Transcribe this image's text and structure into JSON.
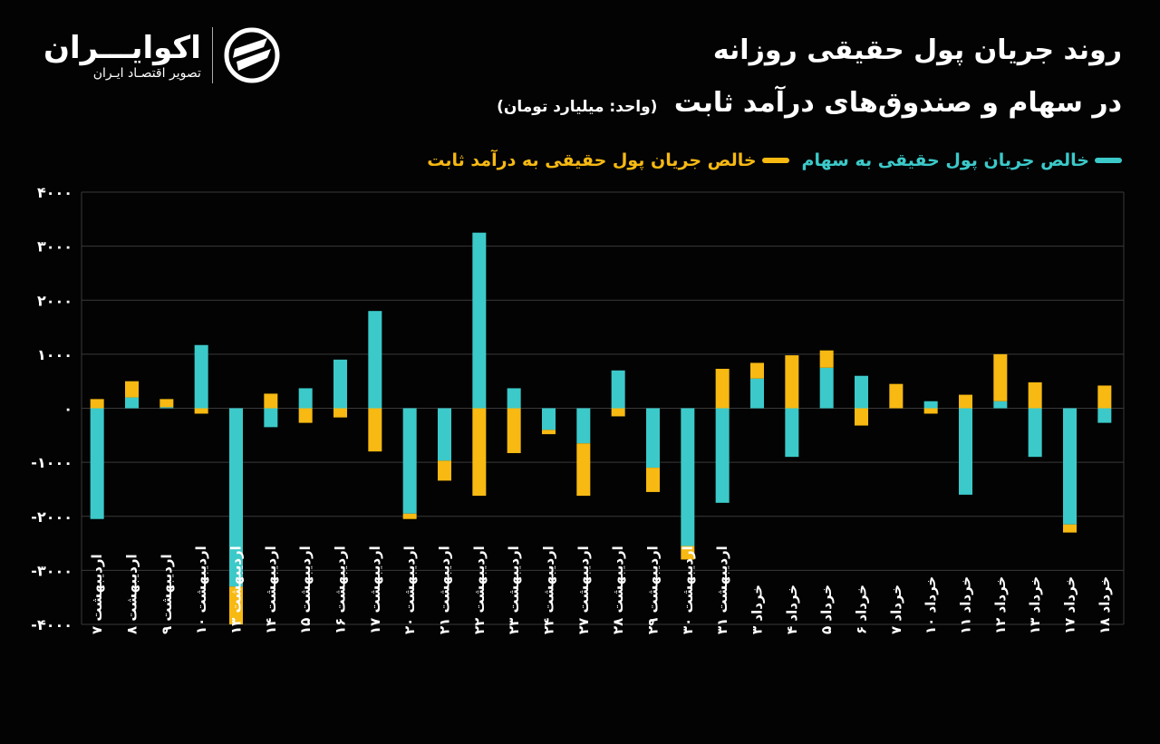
{
  "header": {
    "title_line1": "روند جریان پول حقیقی روزانه",
    "title_line2": "در سهام و صندوق‌های درآمد ثابت",
    "unit": "(واحد: میلیارد تومان)"
  },
  "logo": {
    "name": "اکوایـــران",
    "subtitle": "تصویر اقتصـاد ایـران"
  },
  "colors": {
    "stocks": "#3cc9c9",
    "fixed_income": "#f7b912",
    "background": "#030303"
  },
  "chart_data": {
    "type": "bar",
    "stacked": true,
    "ylim": [
      -4000,
      4000
    ],
    "yticks": [
      4000,
      3000,
      2000,
      1000,
      0,
      -1000,
      -2000,
      -3000,
      -4000
    ],
    "ytick_labels": [
      "۴۰۰۰",
      "۳۰۰۰",
      "۲۰۰۰",
      "۱۰۰۰",
      "۰",
      "-۱۰۰۰",
      "-۲۰۰۰",
      "-۳۰۰۰",
      "-۴۰۰۰"
    ],
    "grid": true,
    "legend_position": "top-right",
    "categories": [
      "اردیبهشت ۷",
      "اردیبهشت ۸",
      "اردیبهشت ۹",
      "اردیبهشت ۱۰",
      "اردیبهشت ۱۳",
      "اردیبهشت ۱۴",
      "اردیبهشت ۱۵",
      "اردیبهشت ۱۶",
      "اردیبهشت ۱۷",
      "اردیبهشت ۲۰",
      "اردیبهشت ۲۱",
      "اردیبهشت ۲۲",
      "اردیبهشت ۲۳",
      "اردیبهشت ۲۴",
      "اردیبهشت ۲۷",
      "اردیبهشت ۲۸",
      "اردیبهشت ۲۹",
      "اردیبهشت ۳۰",
      "اردیبهشت ۳۱",
      "خرداد ۳",
      "خرداد ۴",
      "خرداد ۵",
      "خرداد ۶",
      "خرداد ۷",
      "خرداد ۱۰",
      "خرداد ۱۱",
      "خرداد ۱۲",
      "خرداد ۱۳",
      "خرداد ۱۷",
      "خرداد ۱۸"
    ],
    "series": [
      {
        "name": "خالص جریان پول حقیقی به سهام",
        "values": [
          -2050,
          200,
          20,
          1170,
          -3300,
          -350,
          370,
          900,
          1800,
          -1950,
          -970,
          3250,
          370,
          -400,
          -650,
          700,
          -1100,
          -2550,
          -1750,
          550,
          -900,
          750,
          600,
          0,
          130,
          -1600,
          130,
          -900,
          -2150,
          -270
        ]
      },
      {
        "name": "خالص جریان پول حقیقی به درآمد ثابت",
        "values": [
          170,
          300,
          150,
          -100,
          -700,
          270,
          -270,
          -170,
          -800,
          -100,
          -370,
          -1620,
          -830,
          -80,
          -970,
          -150,
          -450,
          -250,
          730,
          290,
          980,
          320,
          -320,
          450,
          -100,
          250,
          870,
          480,
          -150,
          420
        ]
      }
    ]
  }
}
